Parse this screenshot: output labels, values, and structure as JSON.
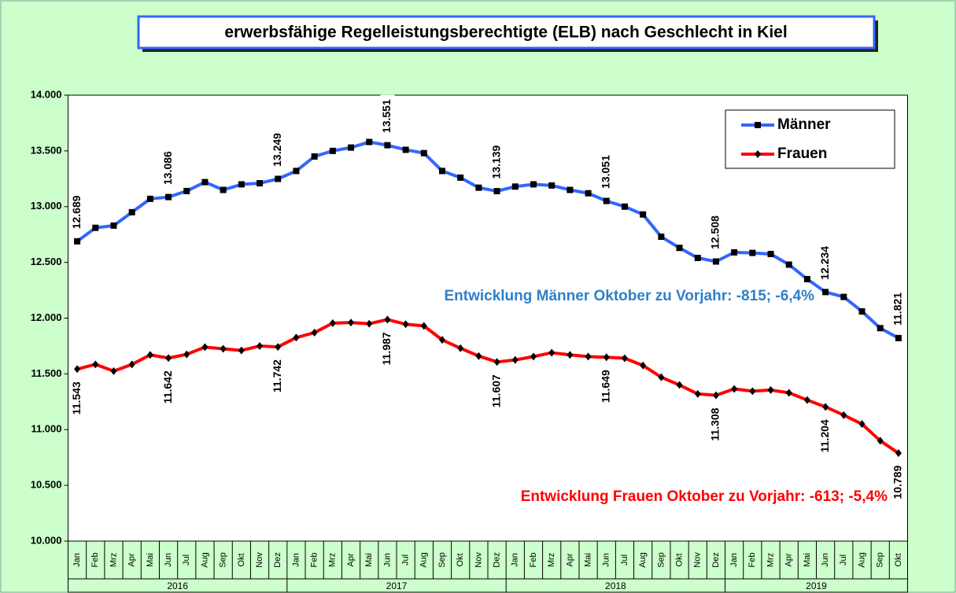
{
  "chart_data": {
    "type": "line",
    "title": "erwerbsfähige Regelleistungsberechtigte (ELB) nach Geschlecht in Kiel",
    "categories": [
      "Jan",
      "Feb",
      "Mrz",
      "Apr",
      "Mai",
      "Jun",
      "Jul",
      "Aug",
      "Sep",
      "Okt",
      "Nov",
      "Dez",
      "Jan",
      "Feb",
      "Mrz",
      "Apr",
      "Mai",
      "Jun",
      "Jul",
      "Aug",
      "Sep",
      "Okt",
      "Nov",
      "Dez",
      "Jan",
      "Feb",
      "Mrz",
      "Apr",
      "Mai",
      "Jun",
      "Jul",
      "Aug",
      "Sep",
      "Okt",
      "Nov",
      "Dez",
      "Jan",
      "Feb",
      "Mrz",
      "Apr",
      "Mai",
      "Jun",
      "Jul",
      "Aug",
      "Sep",
      "Okt"
    ],
    "years": [
      "2016",
      "2017",
      "2018",
      "2019"
    ],
    "series": [
      {
        "name": "Männer",
        "color": "#3366ff",
        "marker": "square",
        "values": [
          12689,
          12810,
          12830,
          12950,
          13070,
          13086,
          13140,
          13220,
          13150,
          13200,
          13210,
          13249,
          13320,
          13450,
          13500,
          13530,
          13580,
          13551,
          13510,
          13480,
          13320,
          13260,
          13170,
          13139,
          13180,
          13200,
          13190,
          13150,
          13120,
          13051,
          13000,
          12930,
          12730,
          12630,
          12540,
          12508,
          12590,
          12585,
          12575,
          12480,
          12350,
          12234,
          12190,
          12060,
          11910,
          11821
        ],
        "value_labels": [
          "12.689",
          null,
          null,
          null,
          null,
          "13.086",
          null,
          null,
          null,
          null,
          null,
          "13.249",
          null,
          null,
          null,
          null,
          null,
          "13.551",
          null,
          null,
          null,
          null,
          null,
          "13.139",
          null,
          null,
          null,
          null,
          null,
          "13.051",
          null,
          null,
          null,
          null,
          null,
          "12.508",
          null,
          null,
          null,
          null,
          null,
          "12.234",
          null,
          null,
          null,
          "11.821"
        ]
      },
      {
        "name": "Frauen",
        "color": "#ff0000",
        "marker": "diamond",
        "values": [
          11543,
          11585,
          11525,
          11585,
          11670,
          11642,
          11675,
          11740,
          11725,
          11710,
          11750,
          11742,
          11825,
          11870,
          11955,
          11960,
          11950,
          11987,
          11945,
          11930,
          11805,
          11730,
          11660,
          11607,
          11625,
          11655,
          11690,
          11670,
          11655,
          11649,
          11640,
          11575,
          11470,
          11400,
          11320,
          11308,
          11365,
          11345,
          11355,
          11330,
          11265,
          11204,
          11130,
          11050,
          10900,
          10789
        ],
        "value_labels": [
          "11.543",
          null,
          null,
          null,
          null,
          "11.642",
          null,
          null,
          null,
          null,
          null,
          "11.742",
          null,
          null,
          null,
          null,
          null,
          "11.987",
          null,
          null,
          null,
          null,
          null,
          "11.607",
          null,
          null,
          null,
          null,
          null,
          "11.649",
          null,
          null,
          null,
          null,
          null,
          "11.308",
          null,
          null,
          null,
          null,
          null,
          "11.204",
          null,
          null,
          null,
          "10.789"
        ]
      }
    ],
    "annotations": [
      {
        "text": "Entwicklung Männer Oktober zu Vorjahr: -815; -6,4%",
        "color": "#2f80c8"
      },
      {
        "text": "Entwicklung Frauen Oktober zu Vorjahr: -613; -5,4%",
        "color": "#ff0000"
      }
    ],
    "ylim": [
      10000,
      14000
    ],
    "yticks": [
      {
        "value": 10000,
        "label": "10.000"
      },
      {
        "value": 10500,
        "label": "10.500"
      },
      {
        "value": 11000,
        "label": "11.000"
      },
      {
        "value": 11500,
        "label": "11.500"
      },
      {
        "value": 12000,
        "label": "12.000"
      },
      {
        "value": 12500,
        "label": "12.500"
      },
      {
        "value": 13000,
        "label": "13.000"
      },
      {
        "value": 13500,
        "label": "13.500"
      },
      {
        "value": 14000,
        "label": "14.000"
      }
    ],
    "legend": "top-right",
    "grid": false
  }
}
